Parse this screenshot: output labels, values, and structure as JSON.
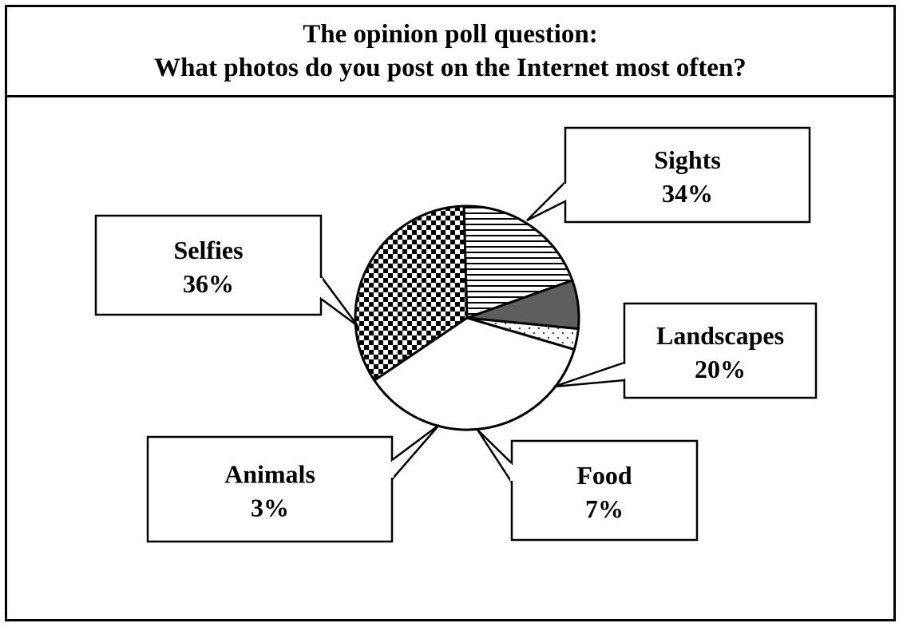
{
  "header": {
    "line1": "The opinion poll question:",
    "line2": "What photos do you post on the Internet most often?"
  },
  "chart_data": {
    "type": "pie",
    "title": "The opinion poll question: What photos do you post on the Internet most often?",
    "slices": [
      {
        "label": "Sights",
        "value": 34,
        "value_label": "34%",
        "pattern": "checkerboard"
      },
      {
        "label": "Landscapes",
        "value": 20,
        "value_label": "20%",
        "pattern": "horizontal-lines"
      },
      {
        "label": "Food",
        "value": 7,
        "value_label": "7%",
        "pattern": "solid",
        "color": "#5e5e5e"
      },
      {
        "label": "Animals",
        "value": 3,
        "value_label": "3%",
        "pattern": "dots"
      },
      {
        "label": "Selfies",
        "value": 36,
        "value_label": "36%",
        "pattern": "none",
        "color": "#ffffff"
      }
    ],
    "start_direction": "upper-left, clockwise from Sights",
    "legend": "none (callout labels)"
  }
}
